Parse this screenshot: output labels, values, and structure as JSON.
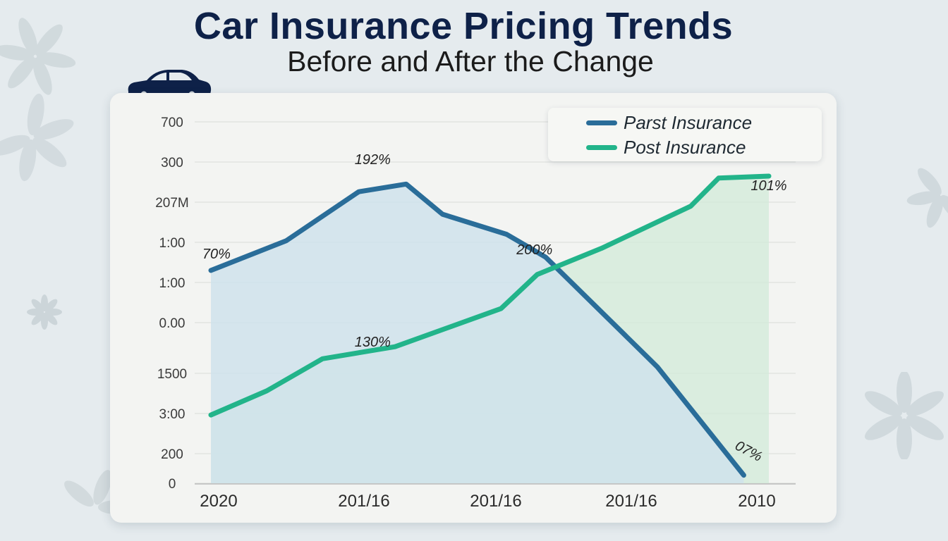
{
  "title": "Car Insurance Pricing Trends",
  "subtitle": "Before and After the Change",
  "colors": {
    "past": "#2a6d99",
    "post": "#22b48a",
    "title": "#0e2148",
    "past_fill": "#cfe2ec",
    "post_fill": "#d3ebd9"
  },
  "chart_data": {
    "type": "line",
    "title": "Car Insurance Pricing Trends",
    "subtitle": "Before and After the Change",
    "y_tick_labels": [
      "700",
      "300",
      "207M",
      "1:00",
      "1:00",
      "0.00",
      "1500",
      "3:00",
      "200",
      "0"
    ],
    "x_tick_labels": [
      "2020",
      "201/16",
      "201/16",
      "201/16",
      "2010"
    ],
    "x_range": [
      0,
      10
    ],
    "y_range": [
      0,
      9
    ],
    "grid": true,
    "legend_position": "top-right",
    "series": [
      {
        "name": "Parst Insurance",
        "color": "#2a6d99",
        "x": [
          0,
          1.35,
          2.65,
          3.5,
          4.15,
          5.3,
          6.0,
          8.0,
          9.55
        ],
        "y": [
          5.3,
          6.04,
          7.26,
          7.45,
          6.7,
          6.2,
          5.63,
          2.9,
          0.2
        ]
      },
      {
        "name": "Post Insurance",
        "color": "#22b48a",
        "x": [
          0,
          1.0,
          2.0,
          3.3,
          5.2,
          5.85,
          7.0,
          8.6,
          9.1,
          10.0
        ],
        "y": [
          1.7,
          2.3,
          3.1,
          3.4,
          4.35,
          5.2,
          5.85,
          6.9,
          7.6,
          7.65
        ]
      }
    ],
    "annotations": [
      {
        "text": "70%",
        "series": "Parst Insurance",
        "x": 0.1,
        "y": 5.6
      },
      {
        "text": "192%",
        "series": "Parst Insurance",
        "x": 2.9,
        "y": 7.95
      },
      {
        "text": "200%",
        "series": "Parst Insurance",
        "x": 5.8,
        "y": 5.7
      },
      {
        "text": "07%",
        "series": "Parst Insurance",
        "x": 9.6,
        "y": 0.7
      },
      {
        "text": "130%",
        "series": "Post Insurance",
        "x": 2.9,
        "y": 3.4
      },
      {
        "text": "101%",
        "series": "Post Insurance",
        "x": 10.0,
        "y": 7.3
      }
    ]
  }
}
